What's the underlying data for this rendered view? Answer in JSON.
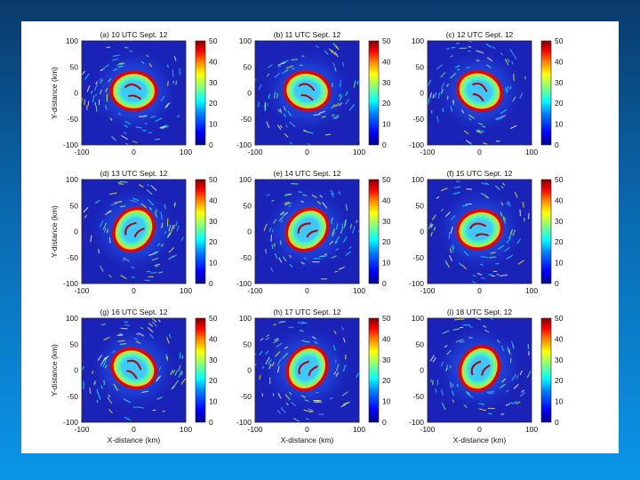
{
  "figure": {
    "panels": [
      {
        "title": "(a) 10 UTC Sept. 12",
        "orient": 0
      },
      {
        "title": "(b) 11 UTC Sept. 12",
        "orient": 10
      },
      {
        "title": "(c) 12 UTC Sept. 12",
        "orient": 20
      },
      {
        "title": "(d) 13 UTC Sept. 12",
        "orient": -55
      },
      {
        "title": "(e) 14 UTC Sept. 12",
        "orient": -45
      },
      {
        "title": "(f) 15 UTC Sept. 12",
        "orient": -15
      },
      {
        "title": "(g) 16 UTC Sept. 12",
        "orient": 25
      },
      {
        "title": "(h) 17 UTC Sept. 12",
        "orient": -60
      },
      {
        "title": "(i) 18 UTC Sept. 12",
        "orient": -65
      }
    ],
    "x_axis_label": "X-distance (km)",
    "y_axis_label": "Y-distance (km)",
    "axis_ticks": [
      "-100",
      "-50",
      "0",
      "50",
      "100"
    ],
    "x_ticks": [
      "-100",
      "0",
      "100"
    ],
    "y_ticks": [
      "100",
      "50",
      "0",
      "-50",
      "-100"
    ],
    "colorbar_ticks": [
      "50",
      "40",
      "30",
      "20",
      "10",
      "0"
    ],
    "colorbar_range": [
      0,
      50
    ]
  },
  "colors": {
    "background": "#1a22b8",
    "jet": [
      "#00008f",
      "#0000ff",
      "#0080ff",
      "#00ffff",
      "#80ff80",
      "#ffff00",
      "#ff8000",
      "#ff0000",
      "#800000"
    ]
  }
}
